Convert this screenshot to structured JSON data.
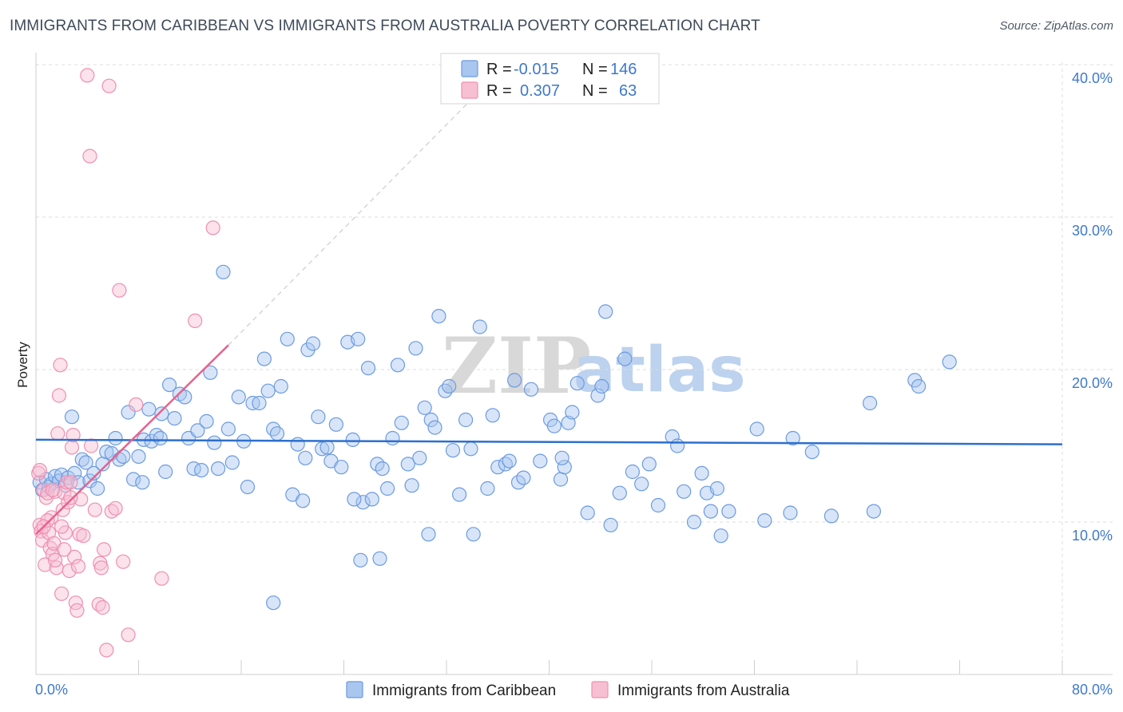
{
  "title": "IMMIGRANTS FROM CARIBBEAN VS IMMIGRANTS FROM AUSTRALIA POVERTY CORRELATION CHART",
  "source": "Source: ZipAtlas.com",
  "watermark": {
    "zip": "ZIP",
    "atlas": "atlas"
  },
  "colors": {
    "blue": "#6b9be0",
    "blue_fill": "#a9c6ef",
    "blue_line": "#2d6fcf",
    "pink": "#ef8fb1",
    "pink_fill": "#f7bfd2",
    "pink_line": "#e6638f",
    "tick_text": "#3f79c9",
    "grid": "#dcdcdc"
  },
  "legend": {
    "rows": [
      {
        "r_label": "R =",
        "r_value": "-0.015",
        "n_label": "N =",
        "n_value": "146"
      },
      {
        "r_label": "R =",
        "r_value": "0.307",
        "n_label": "N =",
        "n_value": "63"
      }
    ]
  },
  "chart_data": {
    "type": "scatter",
    "title": "IMMIGRANTS FROM CARIBBEAN VS IMMIGRANTS FROM AUSTRALIA POVERTY CORRELATION CHART",
    "xlabel": "",
    "ylabel": "Poverty",
    "xlim": [
      0,
      80
    ],
    "ylim": [
      0,
      40
    ],
    "x_tick_labels": [
      "0.0%",
      "80.0%"
    ],
    "y_ticks": [
      10,
      20,
      30,
      40
    ],
    "y_tick_labels": [
      "10.0%",
      "20.0%",
      "30.0%",
      "40.0%"
    ],
    "grid": true,
    "legend_position": "top-center",
    "series": [
      {
        "name": "Immigrants from Caribbean",
        "color": "#6b9be0",
        "trend": {
          "x": [
            0,
            80
          ],
          "y": [
            15.4,
            15.1
          ],
          "dashed_extension": false
        },
        "points": [
          [
            0.3,
            12.6
          ],
          [
            0.5,
            12.1
          ],
          [
            0.8,
            12.8
          ],
          [
            1.0,
            12.3
          ],
          [
            1.2,
            12.5
          ],
          [
            1.5,
            13.0
          ],
          [
            1.8,
            12.7
          ],
          [
            2.0,
            13.1
          ],
          [
            2.3,
            12.4
          ],
          [
            2.5,
            12.9
          ],
          [
            2.8,
            16.9
          ],
          [
            3.0,
            13.2
          ],
          [
            3.3,
            12.6
          ],
          [
            3.6,
            14.1
          ],
          [
            3.9,
            13.9
          ],
          [
            4.2,
            12.7
          ],
          [
            4.5,
            13.2
          ],
          [
            4.8,
            12.2
          ],
          [
            5.2,
            13.8
          ],
          [
            5.5,
            14.6
          ],
          [
            5.9,
            14.5
          ],
          [
            6.2,
            15.5
          ],
          [
            6.5,
            14.1
          ],
          [
            6.8,
            14.3
          ],
          [
            7.2,
            17.2
          ],
          [
            7.6,
            12.8
          ],
          [
            8.0,
            14.3
          ],
          [
            8.4,
            15.4
          ],
          [
            8.8,
            17.4
          ],
          [
            9.0,
            15.3
          ],
          [
            9.4,
            15.7
          ],
          [
            9.8,
            17.1
          ],
          [
            10.1,
            13.3
          ],
          [
            10.4,
            19.0
          ],
          [
            10.8,
            16.8
          ],
          [
            11.2,
            18.4
          ],
          [
            11.6,
            18.2
          ],
          [
            11.9,
            15.5
          ],
          [
            12.3,
            13.5
          ],
          [
            12.6,
            16.0
          ],
          [
            12.9,
            13.4
          ],
          [
            13.3,
            16.6
          ],
          [
            13.6,
            19.8
          ],
          [
            13.9,
            15.2
          ],
          [
            14.2,
            13.5
          ],
          [
            14.6,
            26.4
          ],
          [
            15.0,
            16.1
          ],
          [
            15.3,
            13.9
          ],
          [
            15.8,
            18.2
          ],
          [
            16.2,
            15.3
          ],
          [
            16.5,
            12.3
          ],
          [
            16.9,
            17.8
          ],
          [
            17.4,
            17.8
          ],
          [
            17.8,
            20.7
          ],
          [
            18.1,
            18.6
          ],
          [
            18.5,
            16.1
          ],
          [
            18.8,
            15.8
          ],
          [
            19.1,
            18.9
          ],
          [
            19.6,
            22.0
          ],
          [
            20.0,
            11.8
          ],
          [
            20.4,
            15.1
          ],
          [
            20.8,
            11.4
          ],
          [
            21.2,
            21.3
          ],
          [
            21.6,
            21.7
          ],
          [
            22.0,
            16.9
          ],
          [
            22.3,
            14.8
          ],
          [
            22.7,
            14.9
          ],
          [
            23.0,
            14.0
          ],
          [
            23.4,
            16.4
          ],
          [
            23.8,
            13.6
          ],
          [
            24.3,
            21.8
          ],
          [
            24.7,
            15.4
          ],
          [
            25.1,
            22.0
          ],
          [
            25.5,
            11.3
          ],
          [
            25.9,
            20.1
          ],
          [
            26.2,
            11.5
          ],
          [
            26.6,
            13.8
          ],
          [
            27.0,
            13.5
          ],
          [
            27.8,
            15.5
          ],
          [
            28.2,
            20.3
          ],
          [
            28.5,
            16.5
          ],
          [
            29.0,
            13.8
          ],
          [
            29.3,
            12.4
          ],
          [
            29.6,
            21.4
          ],
          [
            29.9,
            14.2
          ],
          [
            30.3,
            17.5
          ],
          [
            30.6,
            9.2
          ],
          [
            30.8,
            16.7
          ],
          [
            31.1,
            16.2
          ],
          [
            31.4,
            23.5
          ],
          [
            31.9,
            18.6
          ],
          [
            32.2,
            18.9
          ],
          [
            32.5,
            14.7
          ],
          [
            33.0,
            11.8
          ],
          [
            33.5,
            16.7
          ],
          [
            33.9,
            14.8
          ],
          [
            34.1,
            9.2
          ],
          [
            34.6,
            22.8
          ],
          [
            35.2,
            12.2
          ],
          [
            35.6,
            17.0
          ],
          [
            36.0,
            13.6
          ],
          [
            36.6,
            13.8
          ],
          [
            37.3,
            19.3
          ],
          [
            37.6,
            12.6
          ],
          [
            38.0,
            12.9
          ],
          [
            38.6,
            18.7
          ],
          [
            39.3,
            14.0
          ],
          [
            40.1,
            16.7
          ],
          [
            40.4,
            16.3
          ],
          [
            40.9,
            12.8
          ],
          [
            41.2,
            13.6
          ],
          [
            41.5,
            16.5
          ],
          [
            41.8,
            17.2
          ],
          [
            42.2,
            19.1
          ],
          [
            43.0,
            10.6
          ],
          [
            43.8,
            18.3
          ],
          [
            44.1,
            18.9
          ],
          [
            44.4,
            23.8
          ],
          [
            44.8,
            9.8
          ],
          [
            45.5,
            11.9
          ],
          [
            45.9,
            20.7
          ],
          [
            46.5,
            13.3
          ],
          [
            47.2,
            12.5
          ],
          [
            47.8,
            13.8
          ],
          [
            48.5,
            11.1
          ],
          [
            49.6,
            15.6
          ],
          [
            50.0,
            15.0
          ],
          [
            50.5,
            12.0
          ],
          [
            51.3,
            10.0
          ],
          [
            51.9,
            13.2
          ],
          [
            52.3,
            11.9
          ],
          [
            52.6,
            10.7
          ],
          [
            53.1,
            12.2
          ],
          [
            53.4,
            9.1
          ],
          [
            54.0,
            10.7
          ],
          [
            56.2,
            16.1
          ],
          [
            56.8,
            10.1
          ],
          [
            58.8,
            10.6
          ],
          [
            59.0,
            15.5
          ],
          [
            60.5,
            14.6
          ],
          [
            62.0,
            10.4
          ],
          [
            65.0,
            17.8
          ],
          [
            65.3,
            10.7
          ],
          [
            68.5,
            19.3
          ],
          [
            68.8,
            18.9
          ],
          [
            71.2,
            20.5
          ],
          [
            24.8,
            11.5
          ],
          [
            18.5,
            4.7
          ],
          [
            27.4,
            12.2
          ],
          [
            25.3,
            7.5
          ],
          [
            26.8,
            7.6
          ],
          [
            36.9,
            14.0
          ],
          [
            41.0,
            14.2
          ],
          [
            8.3,
            12.6
          ],
          [
            9.7,
            15.5
          ],
          [
            21.0,
            14.2
          ]
        ]
      },
      {
        "name": "Immigrants from Australia",
        "color": "#ef8fb1",
        "trend": {
          "x": [
            0,
            15
          ],
          "y": [
            9.2,
            21.6
          ],
          "dashed_extension": true,
          "dashed_to": [
            33.8,
            37.6
          ]
        },
        "points": [
          [
            0.2,
            13.2
          ],
          [
            0.3,
            9.8
          ],
          [
            0.4,
            9.4
          ],
          [
            0.5,
            8.8
          ],
          [
            0.6,
            12.1
          ],
          [
            0.7,
            7.2
          ],
          [
            0.8,
            11.6
          ],
          [
            0.9,
            11.9
          ],
          [
            1.0,
            9.3
          ],
          [
            1.1,
            8.3
          ],
          [
            1.2,
            10.3
          ],
          [
            1.3,
            7.9
          ],
          [
            1.4,
            8.6
          ],
          [
            1.5,
            12.0
          ],
          [
            1.6,
            7.0
          ],
          [
            1.7,
            15.8
          ],
          [
            1.8,
            18.3
          ],
          [
            1.9,
            20.3
          ],
          [
            2.0,
            5.3
          ],
          [
            2.1,
            10.8
          ],
          [
            2.2,
            11.9
          ],
          [
            2.3,
            9.3
          ],
          [
            2.4,
            12.6
          ],
          [
            2.5,
            11.3
          ],
          [
            2.6,
            6.8
          ],
          [
            2.7,
            12.6
          ],
          [
            2.8,
            14.9
          ],
          [
            2.9,
            15.7
          ],
          [
            3.0,
            7.7
          ],
          [
            3.1,
            4.7
          ],
          [
            3.2,
            4.2
          ],
          [
            3.3,
            7.1
          ],
          [
            3.4,
            9.2
          ],
          [
            3.5,
            11.5
          ],
          [
            4.0,
            39.3
          ],
          [
            4.2,
            34.0
          ],
          [
            4.6,
            10.8
          ],
          [
            4.9,
            4.6
          ],
          [
            5.0,
            7.3
          ],
          [
            5.1,
            7.0
          ],
          [
            5.2,
            4.4
          ],
          [
            5.3,
            8.2
          ],
          [
            5.5,
            1.6
          ],
          [
            5.7,
            38.6
          ],
          [
            5.9,
            10.7
          ],
          [
            6.2,
            10.9
          ],
          [
            6.5,
            25.2
          ],
          [
            6.8,
            7.4
          ],
          [
            7.2,
            2.6
          ],
          [
            7.8,
            17.7
          ],
          [
            9.8,
            6.3
          ],
          [
            12.4,
            23.2
          ],
          [
            13.8,
            29.3
          ],
          [
            2.0,
            9.7
          ],
          [
            0.3,
            13.4
          ],
          [
            1.3,
            12.1
          ],
          [
            0.9,
            10.1
          ],
          [
            2.7,
            11.6
          ],
          [
            4.3,
            15.0
          ],
          [
            3.7,
            9.1
          ],
          [
            0.6,
            9.7
          ],
          [
            1.5,
            7.5
          ],
          [
            2.2,
            8.2
          ]
        ]
      }
    ]
  }
}
